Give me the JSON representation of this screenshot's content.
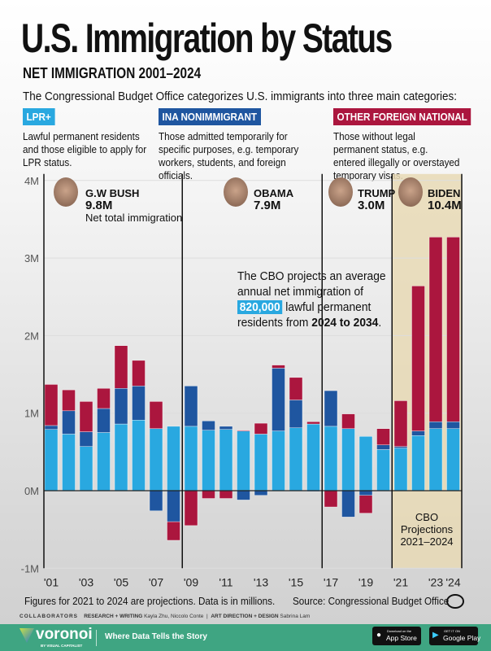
{
  "header": {
    "title": "U.S. Immigration by Status",
    "subtitle": "NET IMMIGRATION 2001–2024",
    "intro": "The Congressional Budget Office categorizes U.S. immigrants into three main categories:"
  },
  "categories": [
    {
      "label": "LPR+",
      "color": "#29a8e0",
      "desc": "Lawful permanent residents and those eligible to apply for LPR status."
    },
    {
      "label": "INA NONIMMIGRANT",
      "color": "#1f56a0",
      "desc": "Those admitted temporarily for specific purposes, e.g. temporary workers, students, and foreign officials."
    },
    {
      "label": "OTHER FOREIGN NATIONAL",
      "color": "#ab163e",
      "desc": "Those without legal permanent status, e.g. entered illegally or overstayed temporary visas."
    }
  ],
  "presidents": [
    {
      "name": "G.W BUSH",
      "total": "9.8M",
      "note": "Net total immigration"
    },
    {
      "name": "OBAMA",
      "total": "7.9M"
    },
    {
      "name": "TRUMP",
      "total": "3.0M"
    },
    {
      "name": "BIDEN",
      "total": "10.4M"
    }
  ],
  "annotation": {
    "pre": "The CBO projects an average",
    "line2": "annual net immigration of",
    "highlight": "820,000",
    "post": "lawful permanent",
    "line4a": "residents from ",
    "bold": "2024 to 2034",
    "end": "."
  },
  "projection_label": [
    "CBO",
    "Projections",
    "2021–2024"
  ],
  "chart_data": {
    "type": "bar",
    "stacked": true,
    "ylim": [
      -1,
      4
    ],
    "yticks": [
      "-1M",
      "0M",
      "1M",
      "2M",
      "3M",
      "4M"
    ],
    "categories": [
      "2001",
      "2002",
      "2003",
      "2004",
      "2005",
      "2006",
      "2007",
      "2008",
      "2009",
      "2010",
      "2011",
      "2012",
      "2013",
      "2014",
      "2015",
      "2016",
      "2017",
      "2018",
      "2019",
      "2020",
      "2021",
      "2022",
      "2023",
      "2024"
    ],
    "xtick_labels": {
      "2001": "'01",
      "2003": "'03",
      "2005": "'05",
      "2007": "'07",
      "2009": "'09",
      "2011": "'11",
      "2013": "'13",
      "2015": "'15",
      "2017": "'17",
      "2019": "'19",
      "2021": "'21",
      "2023": "'23",
      "2024": "'24"
    },
    "series": [
      {
        "name": "LPR+",
        "color": "#29a8e0",
        "values": [
          0.79,
          0.73,
          0.57,
          0.75,
          0.86,
          0.91,
          0.8,
          0.83,
          0.83,
          0.78,
          0.79,
          0.77,
          0.73,
          0.77,
          0.81,
          0.86,
          0.83,
          0.8,
          0.7,
          0.53,
          0.55,
          0.71,
          0.8,
          0.8
        ]
      },
      {
        "name": "INA NONIMMIGRANT",
        "color": "#1f56a0",
        "values": [
          0.05,
          0.3,
          0.19,
          0.31,
          0.46,
          0.44,
          -0.26,
          -0.4,
          0.52,
          0.12,
          0.04,
          -0.12,
          -0.06,
          0.81,
          0.36,
          -0.01,
          0.46,
          -0.34,
          -0.06,
          0.06,
          0.02,
          0.06,
          0.09,
          0.09
        ]
      },
      {
        "name": "OTHER FOREIGN NATIONAL",
        "color": "#ab163e",
        "values": [
          0.53,
          0.27,
          0.39,
          0.26,
          0.55,
          0.33,
          0.35,
          -0.24,
          -0.45,
          -0.1,
          -0.1,
          0.01,
          0.14,
          0.04,
          0.29,
          0.03,
          -0.21,
          0.19,
          -0.23,
          0.21,
          0.59,
          1.87,
          2.38,
          2.38
        ]
      }
    ],
    "grid": true,
    "legend": "top"
  },
  "footer": {
    "note": "Figures for 2021 to 2024 are projections. Data is in millions.",
    "source": "Source: Congressional Budget Office",
    "collab": "COLLABORATORS",
    "rw_label": "RESEARCH + WRITING",
    "rw": "Kayla Zhu, Niccolo Conte",
    "ad_label": "ART DIRECTION + DESIGN",
    "ad": "Sabrina Lam",
    "brand": "voronoi",
    "brand_sub": "BY VISUAL CAPITALIST",
    "tagline": "Where Data Tells the Story",
    "appstore_small": "Download on the",
    "appstore": "App Store",
    "gplay_small": "GET IT ON",
    "gplay": "Google Play"
  }
}
